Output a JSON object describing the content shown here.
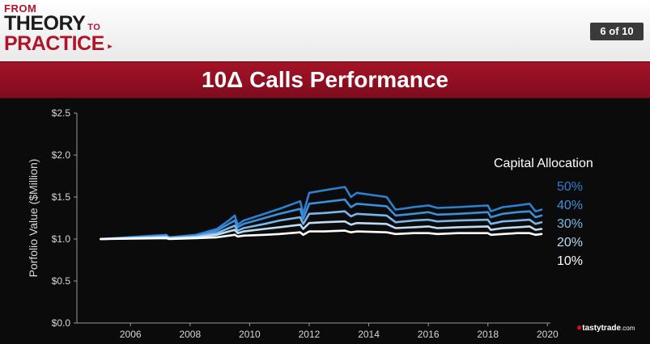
{
  "header": {
    "logo": {
      "line1": "FROM",
      "line2a": "THEORY",
      "line2b": "TO",
      "line3": "PRACTICE",
      "arrow": "▸"
    },
    "slide_counter": "6 of 10"
  },
  "title": "10Δ Calls Performance",
  "chart_data": {
    "type": "line",
    "title": "10Δ Calls Performance",
    "ylabel": "Porfolio Value ($Million)",
    "xlabel": "",
    "x_ticks": [
      "2006",
      "2008",
      "2010",
      "2012",
      "2014",
      "2016",
      "2018",
      "2020"
    ],
    "y_ticks": [
      "$0.0",
      "$0.5",
      "$1.0",
      "$1.5",
      "$2.0",
      "$2.5"
    ],
    "xlim": [
      2004.2,
      2020.1
    ],
    "ylim": [
      0,
      2.5
    ],
    "grid": false,
    "legend_title": "Capital Allocation",
    "legend_position": "right",
    "series": [
      {
        "name": "50%",
        "color": "#2d7fd0",
        "points": [
          [
            2005.0,
            1.0
          ],
          [
            2007.2,
            1.05
          ],
          [
            2007.3,
            1.02
          ],
          [
            2008.2,
            1.05
          ],
          [
            2008.9,
            1.12
          ],
          [
            2009.3,
            1.22
          ],
          [
            2009.5,
            1.28
          ],
          [
            2009.6,
            1.17
          ],
          [
            2009.8,
            1.22
          ],
          [
            2010.5,
            1.3
          ],
          [
            2011.0,
            1.36
          ],
          [
            2011.7,
            1.45
          ],
          [
            2011.8,
            1.3
          ],
          [
            2012.0,
            1.55
          ],
          [
            2012.5,
            1.58
          ],
          [
            2013.2,
            1.62
          ],
          [
            2013.4,
            1.5
          ],
          [
            2013.6,
            1.55
          ],
          [
            2014.6,
            1.5
          ],
          [
            2014.9,
            1.35
          ],
          [
            2015.5,
            1.38
          ],
          [
            2016.0,
            1.4
          ],
          [
            2016.3,
            1.37
          ],
          [
            2017.0,
            1.38
          ],
          [
            2018.0,
            1.4
          ],
          [
            2018.1,
            1.33
          ],
          [
            2018.5,
            1.38
          ],
          [
            2019.0,
            1.4
          ],
          [
            2019.4,
            1.42
          ],
          [
            2019.6,
            1.33
          ],
          [
            2019.8,
            1.35
          ]
        ]
      },
      {
        "name": "40%",
        "color": "#3c8fdb",
        "points": [
          [
            2005.0,
            1.0
          ],
          [
            2007.2,
            1.04
          ],
          [
            2007.3,
            1.02
          ],
          [
            2008.2,
            1.04
          ],
          [
            2008.9,
            1.1
          ],
          [
            2009.3,
            1.18
          ],
          [
            2009.5,
            1.22
          ],
          [
            2009.6,
            1.14
          ],
          [
            2009.8,
            1.18
          ],
          [
            2010.5,
            1.25
          ],
          [
            2011.0,
            1.3
          ],
          [
            2011.7,
            1.36
          ],
          [
            2011.8,
            1.24
          ],
          [
            2012.0,
            1.42
          ],
          [
            2012.5,
            1.44
          ],
          [
            2013.2,
            1.47
          ],
          [
            2013.4,
            1.38
          ],
          [
            2013.6,
            1.42
          ],
          [
            2014.6,
            1.39
          ],
          [
            2014.9,
            1.28
          ],
          [
            2015.5,
            1.3
          ],
          [
            2016.0,
            1.32
          ],
          [
            2016.3,
            1.29
          ],
          [
            2017.0,
            1.3
          ],
          [
            2018.0,
            1.32
          ],
          [
            2018.1,
            1.26
          ],
          [
            2018.5,
            1.3
          ],
          [
            2019.0,
            1.32
          ],
          [
            2019.4,
            1.33
          ],
          [
            2019.6,
            1.26
          ],
          [
            2019.8,
            1.28
          ]
        ]
      },
      {
        "name": "30%",
        "color": "#7cb6e8",
        "points": [
          [
            2005.0,
            1.0
          ],
          [
            2007.2,
            1.03
          ],
          [
            2007.3,
            1.01
          ],
          [
            2008.2,
            1.03
          ],
          [
            2008.9,
            1.07
          ],
          [
            2009.3,
            1.13
          ],
          [
            2009.5,
            1.16
          ],
          [
            2009.6,
            1.1
          ],
          [
            2009.8,
            1.13
          ],
          [
            2010.5,
            1.18
          ],
          [
            2011.0,
            1.22
          ],
          [
            2011.7,
            1.26
          ],
          [
            2011.8,
            1.18
          ],
          [
            2012.0,
            1.3
          ],
          [
            2012.5,
            1.31
          ],
          [
            2013.2,
            1.33
          ],
          [
            2013.4,
            1.27
          ],
          [
            2013.6,
            1.3
          ],
          [
            2014.6,
            1.28
          ],
          [
            2014.9,
            1.2
          ],
          [
            2015.5,
            1.22
          ],
          [
            2016.0,
            1.23
          ],
          [
            2016.3,
            1.21
          ],
          [
            2017.0,
            1.22
          ],
          [
            2018.0,
            1.23
          ],
          [
            2018.1,
            1.18
          ],
          [
            2018.5,
            1.21
          ],
          [
            2019.0,
            1.22
          ],
          [
            2019.4,
            1.23
          ],
          [
            2019.6,
            1.18
          ],
          [
            2019.8,
            1.2
          ]
        ]
      },
      {
        "name": "20%",
        "color": "#bfdcf5",
        "points": [
          [
            2005.0,
            1.0
          ],
          [
            2007.2,
            1.02
          ],
          [
            2007.3,
            1.01
          ],
          [
            2008.2,
            1.02
          ],
          [
            2008.9,
            1.05
          ],
          [
            2009.3,
            1.09
          ],
          [
            2009.5,
            1.11
          ],
          [
            2009.6,
            1.07
          ],
          [
            2009.8,
            1.09
          ],
          [
            2010.5,
            1.12
          ],
          [
            2011.0,
            1.14
          ],
          [
            2011.7,
            1.17
          ],
          [
            2011.8,
            1.12
          ],
          [
            2012.0,
            1.19
          ],
          [
            2012.5,
            1.2
          ],
          [
            2013.2,
            1.21
          ],
          [
            2013.4,
            1.17
          ],
          [
            2013.6,
            1.19
          ],
          [
            2014.6,
            1.18
          ],
          [
            2014.9,
            1.13
          ],
          [
            2015.5,
            1.14
          ],
          [
            2016.0,
            1.15
          ],
          [
            2016.3,
            1.13
          ],
          [
            2017.0,
            1.14
          ],
          [
            2018.0,
            1.15
          ],
          [
            2018.1,
            1.11
          ],
          [
            2018.5,
            1.13
          ],
          [
            2019.0,
            1.14
          ],
          [
            2019.4,
            1.15
          ],
          [
            2019.6,
            1.11
          ],
          [
            2019.8,
            1.12
          ]
        ]
      },
      {
        "name": "10%",
        "color": "#ffffff",
        "points": [
          [
            2005.0,
            1.0
          ],
          [
            2007.2,
            1.01
          ],
          [
            2007.3,
            1.0
          ],
          [
            2008.2,
            1.01
          ],
          [
            2008.9,
            1.02
          ],
          [
            2009.3,
            1.04
          ],
          [
            2009.5,
            1.05
          ],
          [
            2009.6,
            1.03
          ],
          [
            2009.8,
            1.04
          ],
          [
            2010.5,
            1.05
          ],
          [
            2011.0,
            1.06
          ],
          [
            2011.7,
            1.08
          ],
          [
            2011.8,
            1.05
          ],
          [
            2012.0,
            1.09
          ],
          [
            2012.5,
            1.09
          ],
          [
            2013.2,
            1.1
          ],
          [
            2013.4,
            1.08
          ],
          [
            2013.6,
            1.09
          ],
          [
            2014.6,
            1.08
          ],
          [
            2014.9,
            1.06
          ],
          [
            2015.5,
            1.07
          ],
          [
            2016.0,
            1.07
          ],
          [
            2016.3,
            1.06
          ],
          [
            2017.0,
            1.07
          ],
          [
            2018.0,
            1.07
          ],
          [
            2018.1,
            1.05
          ],
          [
            2018.5,
            1.06
          ],
          [
            2019.0,
            1.07
          ],
          [
            2019.4,
            1.07
          ],
          [
            2019.6,
            1.05
          ],
          [
            2019.8,
            1.06
          ]
        ]
      }
    ]
  },
  "brand": {
    "name": "tastytrade",
    "suffix": ".com",
    "mark": "●"
  }
}
